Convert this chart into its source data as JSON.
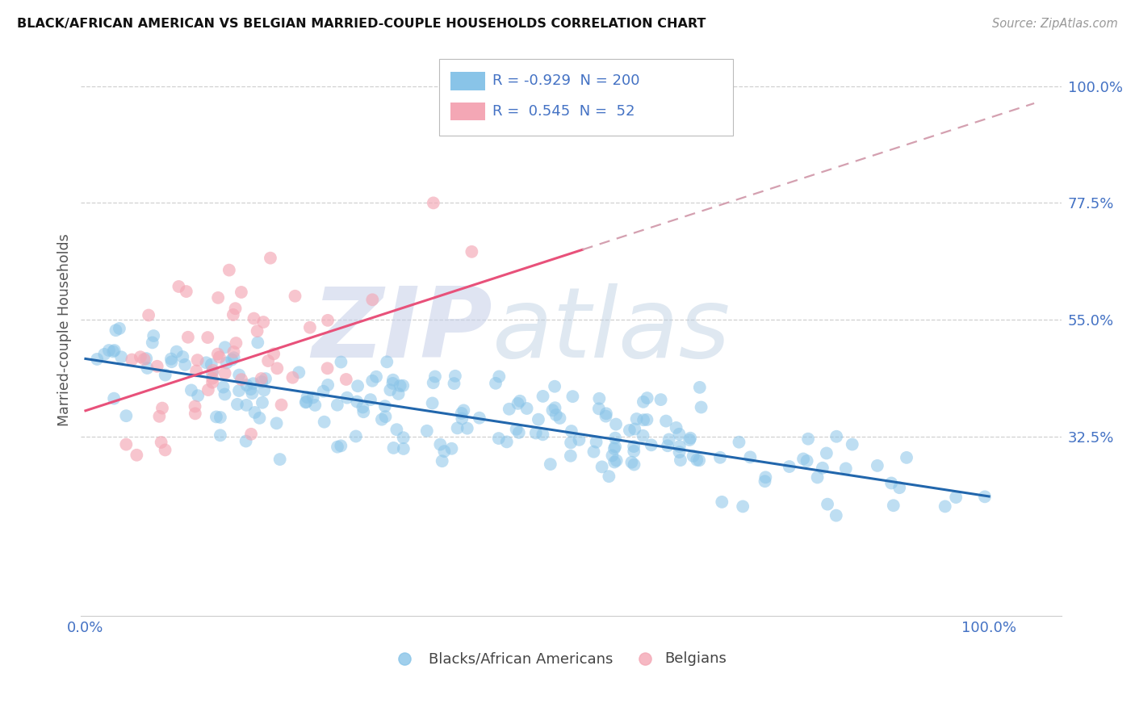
{
  "title": "BLACK/AFRICAN AMERICAN VS BELGIAN MARRIED-COUPLE HOUSEHOLDS CORRELATION CHART",
  "source": "Source: ZipAtlas.com",
  "watermark_zip": "ZIP",
  "watermark_atlas": "atlas",
  "ylabel": "Married-couple Households",
  "legend_labels": [
    "Blacks/African Americans",
    "Belgians"
  ],
  "blue_R": "-0.929",
  "blue_N": "200",
  "pink_R": "0.545",
  "pink_N": "52",
  "blue_scatter_color": "#89c4e8",
  "pink_scatter_color": "#f4a7b5",
  "blue_line_color": "#2166ac",
  "pink_line_color": "#e8517a",
  "dashed_line_color": "#d4a0b0",
  "ytick_vals": [
    0.325,
    0.55,
    0.775,
    1.0
  ],
  "ytick_labels": [
    "32.5%",
    "55.0%",
    "77.5%",
    "100.0%"
  ],
  "xtick_vals": [
    0.0,
    1.0
  ],
  "xtick_labels": [
    "0.0%",
    "100.0%"
  ],
  "ylim": [
    -0.02,
    1.08
  ],
  "xlim": [
    -0.005,
    1.08
  ],
  "background_color": "#ffffff",
  "grid_color": "#d0d0d0",
  "title_color": "#111111",
  "tick_color": "#4472c4",
  "ylabel_color": "#555555",
  "legend_text_color": "#4472c4",
  "legend_box_color": "#aaaaaa",
  "watermark_zip_color": "#c5cfe8",
  "watermark_atlas_color": "#b8cce0"
}
